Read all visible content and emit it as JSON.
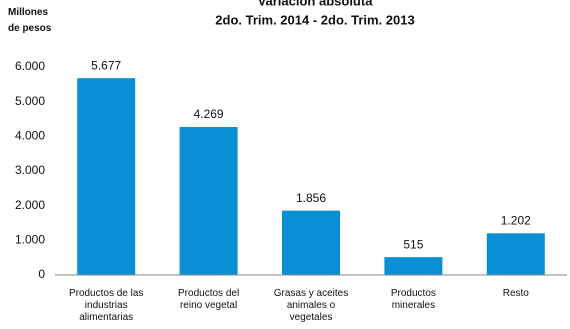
{
  "chart_data": {
    "type": "bar",
    "title": "Variación absoluta",
    "subtitle": "2do. Trim. 2014 - 2do. Trim. 2013",
    "y_label": "Millones de pesos",
    "categories": [
      "Productos de las industrias alimentarias",
      "Productos del reino vegetal",
      "Grasas y aceites animales o vegetales",
      "Productos minerales",
      "Resto"
    ],
    "values": [
      5677,
      4269,
      1856,
      515,
      1202
    ],
    "value_labels": [
      "5.677",
      "4.269",
      "1.856",
      "515",
      "1.202"
    ],
    "color": "#0a8fd4",
    "ylim": [
      0,
      6000
    ],
    "yticks": [
      0,
      {
        "value": 1000,
        "label": "1.000"
      },
      {
        "value": 2000,
        "label": "2.000"
      },
      {
        "value": 3000,
        "label": "3.000"
      },
      {
        "value": 4000,
        "label": "4.000"
      },
      {
        "value": 5000,
        "label": "5.000"
      },
      {
        "value": 6000,
        "label": "6.000"
      }
    ],
    "grid": false
  }
}
